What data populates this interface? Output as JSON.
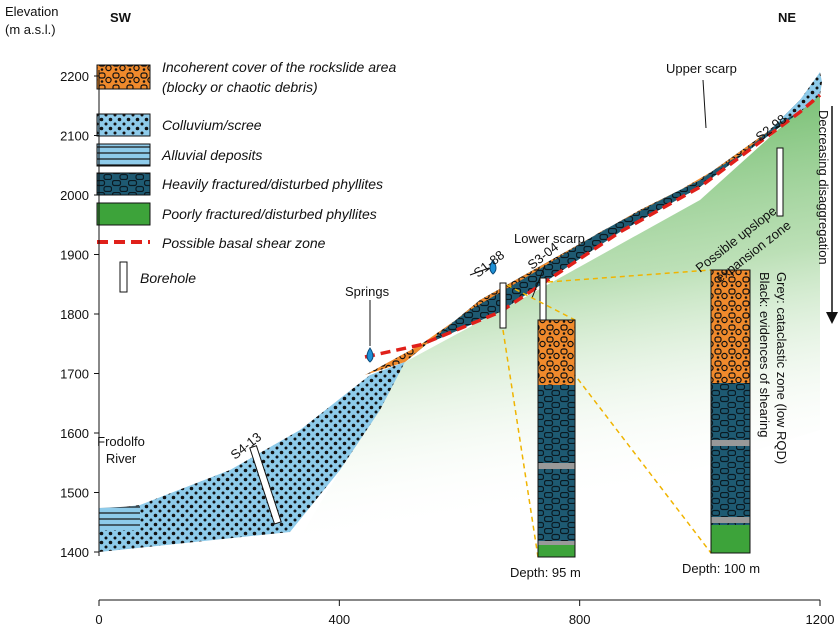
{
  "axes": {
    "y_title": [
      "Elevation",
      "(m a.s.l.)"
    ],
    "yticks": [
      1400,
      1500,
      1600,
      1700,
      1800,
      1900,
      2000,
      2100,
      2200
    ],
    "xticks": [
      0,
      400,
      800,
      1200
    ]
  },
  "orientation": {
    "left": "SW",
    "right": "NE"
  },
  "legend": [
    {
      "lines": [
        "Incoherent cover of the rockslide area",
        "(blocky or chaotic debris)"
      ]
    },
    {
      "lines": [
        "Colluvium/scree"
      ]
    },
    {
      "lines": [
        "Alluvial deposits"
      ]
    },
    {
      "lines": [
        "Heavily fractured/disturbed phyllites"
      ]
    },
    {
      "lines": [
        "Poorly fractured/disturbed phyllites"
      ]
    },
    {
      "lines": [
        "Possible basal shear zone"
      ]
    },
    {
      "lines": [
        "Borehole"
      ]
    }
  ],
  "labels": {
    "river": [
      "Frodolfo",
      "River"
    ],
    "s4": "S4-13",
    "springs": "Springs",
    "s1": "S1-88",
    "lower_scarp": "Lower scarp",
    "s3": "S3-04",
    "s2": "S2-98",
    "upper_scarp": "Upper scarp",
    "expansion": [
      "Possible upslope",
      "expansion zone"
    ]
  },
  "columns": [
    {
      "depth": "Depth: 95 m"
    },
    {
      "depth": "Depth: 100 m"
    }
  ],
  "side_note": [
    "Black: evidences of shearing",
    "Grey: cataclastic zone (low RQD)"
  ],
  "arrow_label": "Decreasing disaggregation"
}
